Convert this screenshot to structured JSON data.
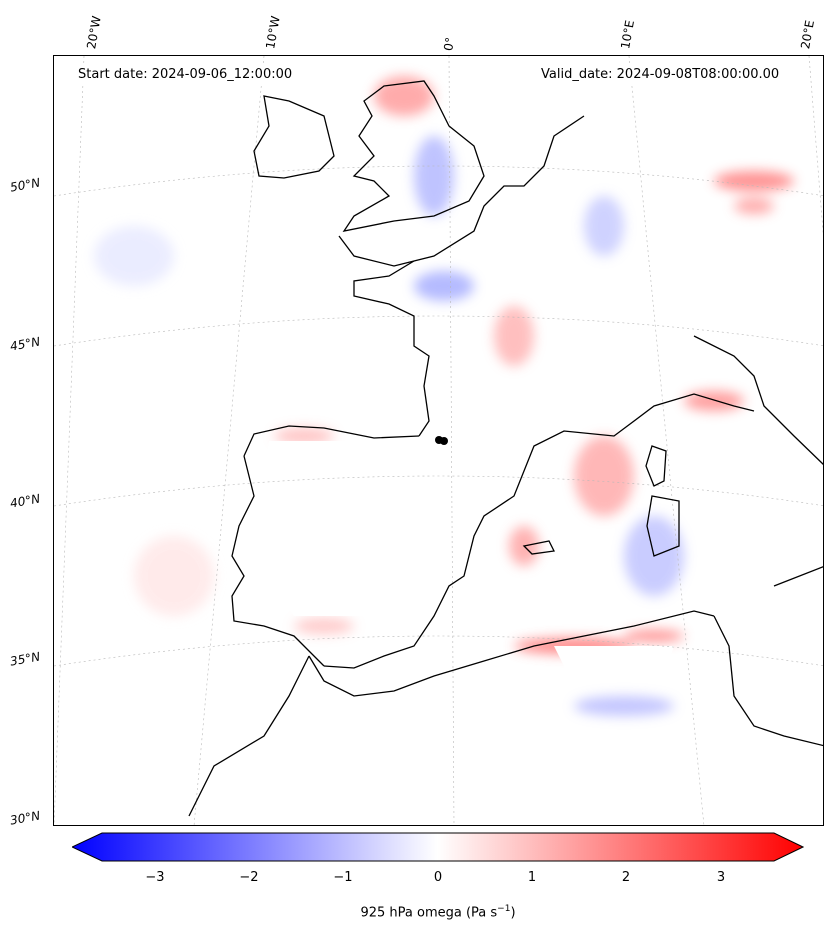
{
  "header": {
    "start_date": "Start date: 2024-09-06_12:00:00",
    "valid_date": "Valid_date: 2024-09-08T08:00:00.00"
  },
  "map": {
    "lon_labels": [
      "20°W",
      "10°W",
      "0°",
      "10°E",
      "20°E"
    ],
    "lat_labels": [
      "50°N",
      "45°N",
      "40°N",
      "35°N",
      "30°N"
    ]
  },
  "colorbar": {
    "label": "925 hPa omega (Pa s",
    "label_superscript": "−1",
    "label_close": ")",
    "ticks": [
      "−3",
      "−2",
      "−1",
      "0",
      "1",
      "2",
      "3"
    ],
    "colors": {
      "negative": "#0000ff",
      "neutral": "#ffffff",
      "positive": "#ff0000"
    }
  }
}
